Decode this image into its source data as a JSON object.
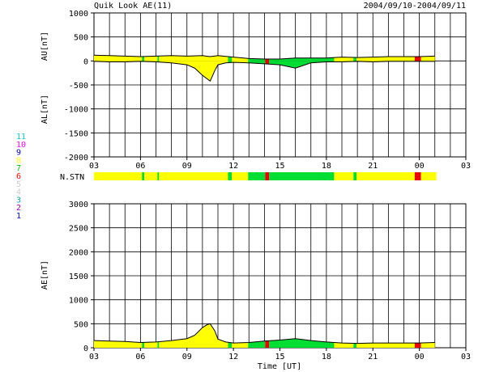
{
  "header": {
    "title": "Quik Look AE(11)",
    "date_range": "2004/09/10-2004/09/11"
  },
  "colors": {
    "ok": "#ffff00",
    "good": "#00dd33",
    "bad": "#ee0000",
    "grid": "#000000"
  },
  "station_legend": {
    "label": "N.STN",
    "levels": [
      {
        "value": "11",
        "color": "#00cccc"
      },
      {
        "value": "10",
        "color": "#ff00ff"
      },
      {
        "value": "9",
        "color": "#0000cc"
      },
      {
        "value": "8",
        "color": "#ffff00"
      },
      {
        "value": "7",
        "color": "#00cc00"
      },
      {
        "value": "6",
        "color": "#ff0000"
      },
      {
        "value": "5",
        "color": "#cccccc"
      },
      {
        "value": "4",
        "color": "#cccccc"
      },
      {
        "value": "3",
        "color": "#00aaaa"
      },
      {
        "value": "2",
        "color": "#aa00aa"
      },
      {
        "value": "1",
        "color": "#0000cc"
      }
    ]
  },
  "chart_data": [
    {
      "type": "area",
      "panel": "AU/AL",
      "ylabel_upper": "AU[nT]",
      "ylabel_lower": "AL[nT]",
      "ylim": [
        -2000,
        1000
      ],
      "yticks": [
        "1000",
        "500",
        "0",
        "-500",
        "-1000",
        "-1500",
        "-2000"
      ],
      "xticks": [
        "03",
        "06",
        "09",
        "12",
        "15",
        "18",
        "21",
        "00",
        "03"
      ],
      "x_unit": "hours UT from 03",
      "au_series": {
        "x": [
          0,
          1,
          2,
          3,
          4,
          5,
          6,
          7,
          7.5,
          8,
          9,
          10,
          11,
          12,
          13,
          14,
          15,
          16,
          17,
          18,
          19,
          20,
          21,
          22
        ],
        "y": [
          120,
          110,
          100,
          90,
          100,
          110,
          100,
          110,
          90,
          110,
          80,
          50,
          40,
          40,
          60,
          60,
          60,
          80,
          70,
          80,
          90,
          90,
          90,
          100
        ]
      },
      "al_series": {
        "x": [
          0,
          1,
          2,
          3,
          4,
          5,
          6,
          6.5,
          7,
          7.5,
          7.8,
          8,
          8.5,
          9,
          10,
          11,
          12,
          13,
          14,
          15,
          16,
          17,
          18,
          19,
          20,
          21,
          22
        ],
        "y": [
          -10,
          -20,
          -20,
          -10,
          -20,
          -40,
          -80,
          -150,
          -300,
          -420,
          -200,
          -80,
          -40,
          -30,
          -40,
          -60,
          -80,
          -150,
          -40,
          -20,
          -20,
          -10,
          -20,
          -10,
          -10,
          -10,
          -10
        ]
      }
    },
    {
      "type": "area",
      "panel": "AE",
      "ylabel": "AE[nT]",
      "xlabel": "Time [UT]",
      "ylim": [
        0,
        3000
      ],
      "yticks": [
        "3000",
        "2500",
        "2000",
        "1500",
        "1000",
        "500",
        "0"
      ],
      "xticks": [
        "03",
        "06",
        "09",
        "12",
        "15",
        "18",
        "21",
        "00",
        "03"
      ],
      "ae_series": {
        "x": [
          0,
          1,
          2,
          3,
          4,
          5,
          6,
          6.5,
          7,
          7.3,
          7.5,
          7.8,
          8,
          8.5,
          9,
          10,
          11,
          12,
          13,
          14,
          15,
          16,
          17,
          18,
          19,
          20,
          21,
          22
        ],
        "y": [
          150,
          140,
          130,
          110,
          120,
          150,
          190,
          260,
          420,
          480,
          500,
          350,
          180,
          120,
          100,
          110,
          140,
          160,
          190,
          150,
          120,
          100,
          90,
          100,
          100,
          100,
          100,
          110
        ]
      }
    }
  ],
  "station_bar": {
    "segments": [
      {
        "from": 0,
        "to": 3.1,
        "status": "ok"
      },
      {
        "from": 3.1,
        "to": 3.25,
        "status": "good"
      },
      {
        "from": 3.25,
        "to": 4.1,
        "status": "ok"
      },
      {
        "from": 4.1,
        "to": 4.2,
        "status": "good"
      },
      {
        "from": 4.2,
        "to": 8.65,
        "status": "ok"
      },
      {
        "from": 8.65,
        "to": 8.9,
        "status": "good"
      },
      {
        "from": 8.9,
        "to": 9.95,
        "status": "ok"
      },
      {
        "from": 9.95,
        "to": 11.05,
        "status": "good"
      },
      {
        "from": 11.05,
        "to": 11.3,
        "status": "bad"
      },
      {
        "from": 11.3,
        "to": 15.5,
        "status": "good"
      },
      {
        "from": 15.5,
        "to": 16.75,
        "status": "ok"
      },
      {
        "from": 16.75,
        "to": 16.95,
        "status": "good"
      },
      {
        "from": 16.95,
        "to": 20.7,
        "status": "ok"
      },
      {
        "from": 20.7,
        "to": 21.1,
        "status": "bad"
      },
      {
        "from": 21.1,
        "to": 22.1,
        "status": "ok"
      }
    ]
  }
}
